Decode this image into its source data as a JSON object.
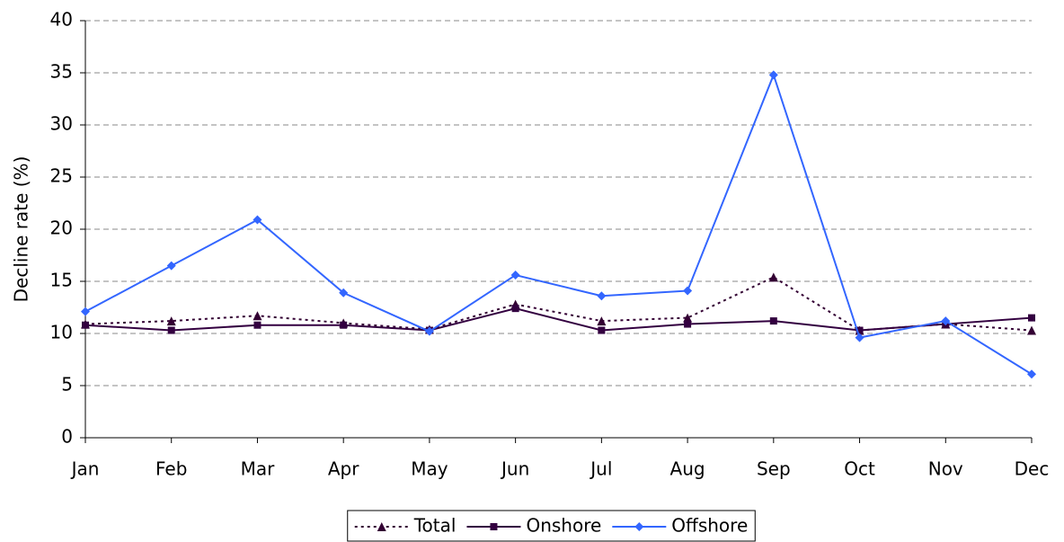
{
  "chart_data": {
    "type": "line",
    "categories": [
      "Jan",
      "Feb",
      "Mar",
      "Apr",
      "May",
      "Jun",
      "Jul",
      "Aug",
      "Sep",
      "Oct",
      "Nov",
      "Dec"
    ],
    "y_label": "Decline rate (%)",
    "series": [
      {
        "name": "Total",
        "color": "#330033",
        "dash": "dotted",
        "marker": "triangle",
        "values": [
          10.9,
          11.2,
          11.7,
          11.0,
          10.4,
          12.8,
          11.2,
          11.5,
          15.4,
          10.3,
          10.9,
          10.3
        ]
      },
      {
        "name": "Onshore",
        "color": "#330040",
        "dash": "solid",
        "marker": "square",
        "values": [
          10.8,
          10.3,
          10.8,
          10.8,
          10.3,
          12.4,
          10.3,
          10.9,
          11.2,
          10.3,
          10.9,
          11.5
        ]
      },
      {
        "name": "Offshore",
        "color": "#3366ff",
        "dash": "solid",
        "marker": "diamond",
        "values": [
          12.1,
          16.5,
          20.9,
          13.9,
          10.2,
          15.6,
          13.6,
          14.1,
          34.8,
          9.6,
          11.2,
          6.1
        ]
      }
    ],
    "ylim": [
      0,
      40
    ],
    "yticks": [
      0,
      5,
      10,
      15,
      20,
      25,
      30,
      35,
      40
    ],
    "grid": true,
    "legend": "bottom"
  }
}
